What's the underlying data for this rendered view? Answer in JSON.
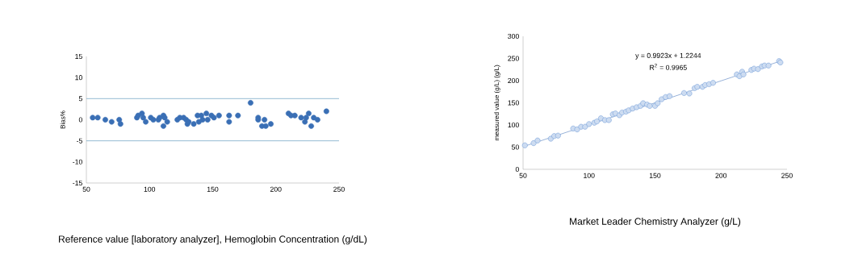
{
  "chart_data": [
    {
      "type": "scatter",
      "ylabel": "Bias%",
      "xlabel": "Reference value [laboratory analyzer], Hemoglobin Concentration (g/dL)",
      "marker": "circle",
      "color": "#3a6fb5",
      "xlim": [
        50,
        250
      ],
      "xticks": [
        50,
        100,
        150,
        200,
        250
      ],
      "ylim": [
        -15,
        15
      ],
      "yticks": [
        -15,
        -10,
        -5,
        0,
        5,
        10,
        15
      ],
      "x": [
        55,
        59,
        65,
        70,
        76,
        77,
        90,
        91,
        94,
        95,
        97,
        101,
        103,
        107,
        108,
        111,
        112,
        111,
        114,
        122,
        124,
        127,
        129,
        130,
        131,
        135,
        138,
        139,
        141,
        142,
        145,
        146,
        149,
        151,
        155,
        163,
        163,
        170,
        180,
        186,
        186,
        189,
        191,
        192,
        196,
        210,
        212,
        215,
        220,
        223,
        224,
        226,
        228,
        230,
        233,
        240
      ],
      "values": [
        0.5,
        0.5,
        0,
        -0.5,
        0,
        -1,
        0.5,
        1,
        1.5,
        0.5,
        -0.5,
        0.5,
        0,
        0,
        0.5,
        1,
        0.5,
        -1.5,
        -0.5,
        0,
        0.5,
        0.5,
        0,
        -1,
        -0.5,
        -1,
        1,
        -0.5,
        1,
        0,
        1.5,
        0,
        1,
        0.5,
        1,
        1,
        -0.5,
        1,
        4,
        0.5,
        0,
        -1.5,
        0,
        -1.5,
        -1,
        1.5,
        1,
        1,
        0.5,
        -0.5,
        0.5,
        1.5,
        -1.5,
        0.5,
        0,
        2
      ],
      "ref_lines": [
        {
          "axis": "y",
          "value": 5,
          "color": "#7aaac8"
        },
        {
          "axis": "y",
          "value": -5,
          "color": "#7aaac8"
        }
      ]
    },
    {
      "type": "scatter",
      "ylabel": "measured value (g/L) (g/L)",
      "xlabel": "Market Leader Chemistry Analyzer (g/L)",
      "xlim": [
        50,
        250
      ],
      "xticks": [
        50,
        100,
        150,
        200,
        250
      ],
      "ylim": [
        0,
        300
      ],
      "yticks": [
        0,
        50,
        100,
        150,
        200,
        250,
        300
      ],
      "annotations": [
        "y = 0.9923x + 1.2244",
        "R$^{2}$ = 0.9965"
      ],
      "series": [
        {
          "type": "scatter",
          "marker": "circle",
          "color": "#6f9bd8",
          "x": [
            51.4,
            58,
            61,
            71,
            73.6,
            76.5,
            88,
            91,
            94,
            97,
            100,
            104,
            106,
            109,
            112,
            115,
            118,
            120,
            123,
            125,
            128,
            130,
            133,
            136,
            139,
            141,
            144,
            146,
            150,
            152,
            155,
            158,
            161,
            172,
            176,
            180,
            182,
            186,
            188,
            191,
            194,
            212,
            214,
            216,
            217,
            223,
            225,
            228,
            231,
            233,
            236,
            244,
            245
          ],
          "values": [
            54,
            59,
            65,
            69,
            75,
            76,
            92,
            90,
            96,
            96,
            102,
            105,
            108,
            115,
            111,
            111,
            124,
            126,
            122,
            128,
            130,
            133,
            137,
            140,
            143,
            149,
            146,
            143,
            143,
            149,
            158,
            163,
            165,
            172,
            171,
            183,
            186,
            186,
            190,
            192,
            195,
            214,
            210,
            220,
            214,
            224,
            227,
            226,
            232,
            234,
            234,
            244,
            241
          ]
        },
        {
          "type": "line",
          "color": "#7f9fcf",
          "x": [
            50,
            245
          ],
          "values": [
            51,
            244
          ]
        }
      ]
    }
  ]
}
